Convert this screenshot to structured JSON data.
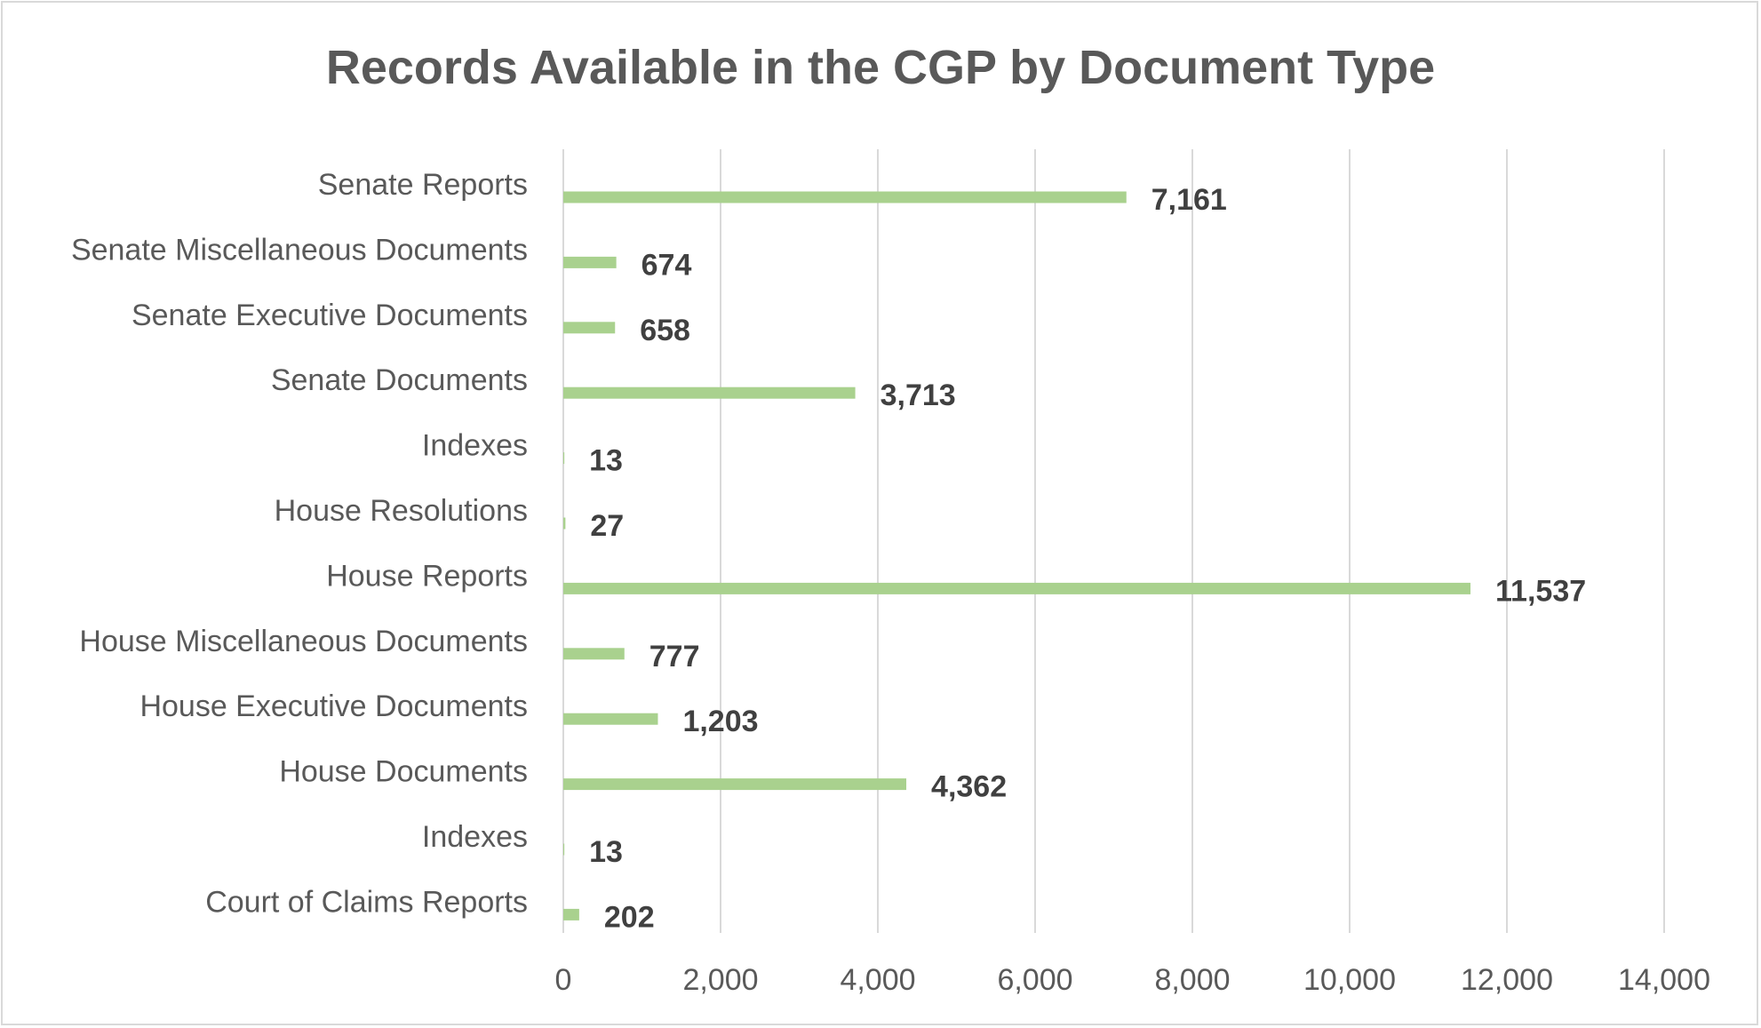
{
  "chart_data": {
    "type": "bar",
    "orientation": "horizontal",
    "title": "Records Available in the CGP by Document Type",
    "xlabel": "",
    "ylabel": "",
    "categories": [
      "Senate Reports",
      "Senate Miscellaneous Documents",
      "Senate Executive Documents",
      "Senate Documents",
      "Indexes",
      "House Resolutions",
      "House Reports",
      "House Miscellaneous Documents",
      "House Executive Documents",
      "House Documents",
      "Indexes",
      "Court of Claims Reports"
    ],
    "values": [
      7161,
      674,
      658,
      3713,
      13,
      27,
      11537,
      777,
      1203,
      4362,
      13,
      202
    ],
    "data_labels": [
      "7,161",
      "674",
      "658",
      "3,713",
      "13",
      "27",
      "11,537",
      "777",
      "1,203",
      "4,362",
      "13",
      "202"
    ],
    "xlim": [
      0,
      14000
    ],
    "x_ticks": [
      0,
      2000,
      4000,
      6000,
      8000,
      10000,
      12000,
      14000
    ],
    "x_tick_labels": [
      "0",
      "2,000",
      "4,000",
      "6,000",
      "8,000",
      "10,000",
      "12,000",
      "14,000"
    ],
    "grid": true,
    "legend": "none",
    "colors": {
      "bar": "#a9d18e",
      "grid": "#d9d9d9",
      "title": "#595959",
      "labels": "#595959",
      "data_labels": "#404040"
    }
  }
}
